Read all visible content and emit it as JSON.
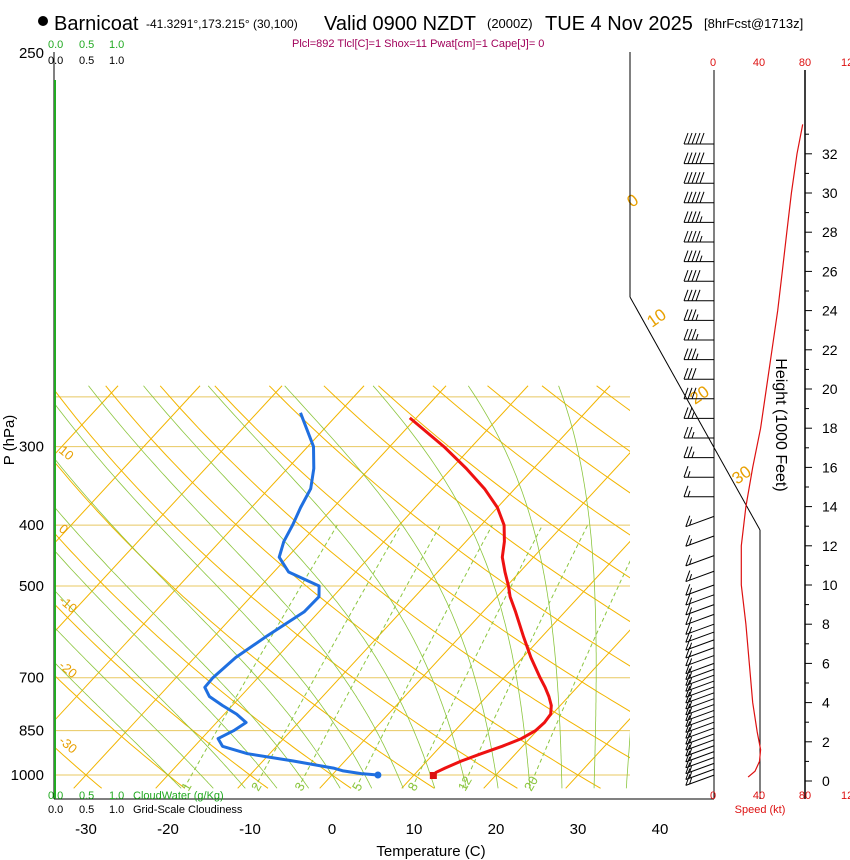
{
  "chart_data": {
    "type": "line",
    "title": {
      "station": "Barnicoat",
      "coords": "-41.3291°,173.215° (30,100)",
      "valid": "Valid 0900 NZDT",
      "utc": "(2000Z)",
      "date": "TUE 4 Nov 2025",
      "forecast": "[8hrFcst@1713z]"
    },
    "indices": "Plcl=892 Tlcl[C]=1 Shox=11 Pwat[cm]=1 Cape[J]= 0",
    "xlabel": "Temperature (C)",
    "ylabel": "P (hPa)",
    "ylabel_right": "Height (1000 Feet)",
    "speed_label": "Speed (kt)",
    "x_ticks": [
      -30,
      -20,
      -10,
      0,
      10,
      20,
      30,
      40
    ],
    "xlim": [
      -35,
      36
    ],
    "p_ticks": [
      250,
      300,
      400,
      500,
      700,
      850,
      1000
    ],
    "plim": [
      250,
      1050
    ],
    "height_ticks": [
      0,
      2,
      4,
      6,
      8,
      10,
      12,
      14,
      16,
      18,
      20,
      22,
      24,
      26,
      28,
      30,
      32
    ],
    "speed_ticks_top": [
      "0",
      "40",
      "80",
      "12"
    ],
    "speed_ticks_bottom": [
      "0",
      "40",
      "80",
      "12"
    ],
    "cloud_scale_top": {
      "green": [
        "0.0",
        "0.5",
        "1.0"
      ],
      "black": [
        "0.0",
        "0.5",
        "1.0"
      ]
    },
    "cloud_scale_bottom": {
      "green": [
        "0.0",
        "0.5",
        "1.0"
      ],
      "green_label": "CloudWater (g/Kg)",
      "black": [
        "0.0",
        "0.5",
        "1.0"
      ],
      "black_label": "Grid-Scale Cloudiness"
    },
    "isotherm_labels": [
      "10",
      "0",
      "-10",
      "-20",
      "-30"
    ],
    "adiabat_labels": [
      "0",
      "10",
      "20",
      "30"
    ],
    "mixing_ratio_labels": [
      "1",
      "2",
      "3",
      "5",
      "8",
      "12",
      "20"
    ],
    "mixing_ratios": [
      1,
      2,
      3,
      5,
      8,
      12,
      20
    ],
    "series": [
      {
        "name": "temperature",
        "color": "#ee1111",
        "points": [
          {
            "p": 1000,
            "t": 12.3
          },
          {
            "p": 990,
            "t": 12.4
          },
          {
            "p": 975,
            "t": 13.0
          },
          {
            "p": 950,
            "t": 14.2
          },
          {
            "p": 925,
            "t": 15.8
          },
          {
            "p": 900,
            "t": 17.5
          },
          {
            "p": 875,
            "t": 19.0
          },
          {
            "p": 850,
            "t": 19.8
          },
          {
            "p": 825,
            "t": 20.0
          },
          {
            "p": 800,
            "t": 19.8
          },
          {
            "p": 775,
            "t": 18.9
          },
          {
            "p": 750,
            "t": 17.6
          },
          {
            "p": 725,
            "t": 16.1
          },
          {
            "p": 700,
            "t": 14.4
          },
          {
            "p": 650,
            "t": 11.0
          },
          {
            "p": 600,
            "t": 7.6
          },
          {
            "p": 550,
            "t": 4.0
          },
          {
            "p": 520,
            "t": 1.6
          },
          {
            "p": 500,
            "t": 0.2
          },
          {
            "p": 475,
            "t": -1.8
          },
          {
            "p": 450,
            "t": -3.8
          },
          {
            "p": 425,
            "t": -5.3
          },
          {
            "p": 400,
            "t": -7.2
          },
          {
            "p": 375,
            "t": -10.0
          },
          {
            "p": 350,
            "t": -13.7
          },
          {
            "p": 325,
            "t": -18.2
          },
          {
            "p": 300,
            "t": -23.4
          },
          {
            "p": 270,
            "t": -30.8
          }
        ]
      },
      {
        "name": "dewpoint",
        "color": "#1f6fe0",
        "points": [
          {
            "p": 1000,
            "t": 5.6
          },
          {
            "p": 995,
            "t": 3.4
          },
          {
            "p": 985,
            "t": 0.9
          },
          {
            "p": 975,
            "t": -0.6
          },
          {
            "p": 950,
            "t": -6.3
          },
          {
            "p": 925,
            "t": -12.7
          },
          {
            "p": 900,
            "t": -16.6
          },
          {
            "p": 875,
            "t": -18.0
          },
          {
            "p": 850,
            "t": -17.0
          },
          {
            "p": 825,
            "t": -16.4
          },
          {
            "p": 800,
            "t": -18.5
          },
          {
            "p": 775,
            "t": -21.2
          },
          {
            "p": 750,
            "t": -23.8
          },
          {
            "p": 725,
            "t": -25.4
          },
          {
            "p": 700,
            "t": -25.5
          },
          {
            "p": 650,
            "t": -25.0
          },
          {
            "p": 600,
            "t": -23.6
          },
          {
            "p": 550,
            "t": -21.8
          },
          {
            "p": 520,
            "t": -21.7
          },
          {
            "p": 500,
            "t": -22.9
          },
          {
            "p": 475,
            "t": -28.2
          },
          {
            "p": 450,
            "t": -31.0
          },
          {
            "p": 425,
            "t": -32.2
          },
          {
            "p": 400,
            "t": -33.0
          },
          {
            "p": 375,
            "t": -34.0
          },
          {
            "p": 350,
            "t": -34.9
          },
          {
            "p": 325,
            "t": -36.8
          },
          {
            "p": 300,
            "t": -39.3
          },
          {
            "p": 265,
            "t": -44.7
          }
        ]
      },
      {
        "name": "wind_speed",
        "color": "#dd1111",
        "points": [
          {
            "h": 0.2,
            "s": 30
          },
          {
            "h": 0.5,
            "s": 36
          },
          {
            "h": 1.0,
            "s": 40
          },
          {
            "h": 1.6,
            "s": 41
          },
          {
            "h": 2.5,
            "s": 38
          },
          {
            "h": 4.0,
            "s": 34
          },
          {
            "h": 6.0,
            "s": 31
          },
          {
            "h": 8.0,
            "s": 28
          },
          {
            "h": 10.0,
            "s": 24
          },
          {
            "h": 12.0,
            "s": 24
          },
          {
            "h": 14.0,
            "s": 28
          },
          {
            "h": 16.0,
            "s": 34
          },
          {
            "h": 18.0,
            "s": 41
          },
          {
            "h": 20.0,
            "s": 46
          },
          {
            "h": 22.0,
            "s": 51
          },
          {
            "h": 24.0,
            "s": 56
          },
          {
            "h": 26.0,
            "s": 60
          },
          {
            "h": 28.0,
            "s": 64
          },
          {
            "h": 30.0,
            "s": 68
          },
          {
            "h": 32.0,
            "s": 73
          },
          {
            "h": 33.5,
            "s": 78
          }
        ]
      }
    ],
    "surface_markers": {
      "temperature": {
        "p": 1000,
        "t": 12.3
      },
      "dewpoint": {
        "p": 1000,
        "t": 5.6
      }
    },
    "wind_barbs": [
      {
        "h": 0.3,
        "kt": 15
      },
      {
        "h": 0.6,
        "kt": 15
      },
      {
        "h": 0.9,
        "kt": 15
      },
      {
        "h": 1.2,
        "kt": 15
      },
      {
        "h": 1.5,
        "kt": 15
      },
      {
        "h": 1.8,
        "kt": 15
      },
      {
        "h": 2.1,
        "kt": 15
      },
      {
        "h": 2.4,
        "kt": 15
      },
      {
        "h": 2.7,
        "kt": 15
      },
      {
        "h": 3.0,
        "kt": 15
      },
      {
        "h": 3.3,
        "kt": 15
      },
      {
        "h": 3.6,
        "kt": 15
      },
      {
        "h": 3.9,
        "kt": 15
      },
      {
        "h": 4.2,
        "kt": 15
      },
      {
        "h": 4.5,
        "kt": 15
      },
      {
        "h": 4.8,
        "kt": 15
      },
      {
        "h": 5.1,
        "kt": 15
      },
      {
        "h": 5.4,
        "kt": 15
      },
      {
        "h": 5.7,
        "kt": 15
      },
      {
        "h": 6.0,
        "kt": 15
      },
      {
        "h": 6.4,
        "kt": 15
      },
      {
        "h": 6.8,
        "kt": 15
      },
      {
        "h": 7.2,
        "kt": 15
      },
      {
        "h": 7.6,
        "kt": 15
      },
      {
        "h": 8.0,
        "kt": 15
      },
      {
        "h": 8.5,
        "kt": 15
      },
      {
        "h": 9.0,
        "kt": 15
      },
      {
        "h": 9.5,
        "kt": 15
      },
      {
        "h": 10.0,
        "kt": 15
      },
      {
        "h": 10.7,
        "kt": 15
      },
      {
        "h": 11.5,
        "kt": 15
      },
      {
        "h": 12.5,
        "kt": 15
      },
      {
        "h": 13.5,
        "kt": 15
      },
      {
        "h": 14.5,
        "kt": 15
      },
      {
        "h": 15.5,
        "kt": 15
      },
      {
        "h": 16.5,
        "kt": 25
      },
      {
        "h": 17.5,
        "kt": 25
      },
      {
        "h": 18.5,
        "kt": 25
      },
      {
        "h": 19.5,
        "kt": 30
      },
      {
        "h": 20.5,
        "kt": 30
      },
      {
        "h": 21.5,
        "kt": 35
      },
      {
        "h": 22.5,
        "kt": 35
      },
      {
        "h": 23.5,
        "kt": 35
      },
      {
        "h": 24.5,
        "kt": 40
      },
      {
        "h": 25.5,
        "kt": 40
      },
      {
        "h": 26.5,
        "kt": 45
      },
      {
        "h": 27.5,
        "kt": 45
      },
      {
        "h": 28.5,
        "kt": 45
      },
      {
        "h": 29.5,
        "kt": 50
      },
      {
        "h": 30.5,
        "kt": 50
      },
      {
        "h": 31.5,
        "kt": 50
      },
      {
        "h": 32.5,
        "kt": 50
      }
    ],
    "legend": "none",
    "grid": true
  },
  "colors": {
    "isobar": "#e8c860",
    "isotherm": "#f2b500",
    "dry_adiabat": "#f2b500",
    "moist_adiabat": "#8cc63f",
    "mixing_ratio": "#8cc63f",
    "label_orange": "#e8a000",
    "cloud_green": "#22aa22",
    "indices": "#a0005a",
    "speed_red": "#dd1111"
  }
}
